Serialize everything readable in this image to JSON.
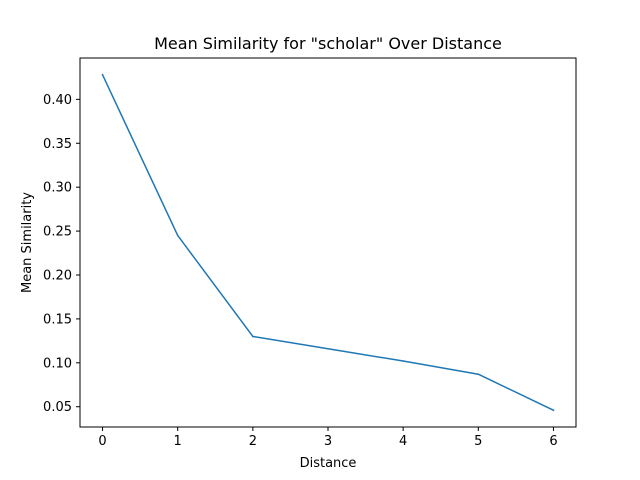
{
  "chart_data": {
    "type": "line",
    "title": "Mean Similarity for \"scholar\" Over Distance",
    "xlabel": "Distance",
    "ylabel": "Mean Similarity",
    "x": [
      0,
      1,
      2,
      3,
      4,
      5,
      6
    ],
    "series": [
      {
        "values": [
          0.428,
          0.245,
          0.13,
          0.116,
          0.102,
          0.087,
          0.046
        ]
      }
    ],
    "xlim": [
      -0.3,
      6.3
    ],
    "ylim": [
      0.0269,
      0.4471
    ],
    "xticks": [
      0,
      1,
      2,
      3,
      4,
      5,
      6
    ],
    "xtick_labels": [
      "0",
      "1",
      "2",
      "3",
      "4",
      "5",
      "6"
    ],
    "yticks": [
      0.05,
      0.1,
      0.15,
      0.2,
      0.25,
      0.3,
      0.35,
      0.4
    ],
    "ytick_labels": [
      "0.05",
      "0.10",
      "0.15",
      "0.20",
      "0.25",
      "0.30",
      "0.35",
      "0.40"
    ],
    "grid": false,
    "line_color": "#1f77b4"
  }
}
